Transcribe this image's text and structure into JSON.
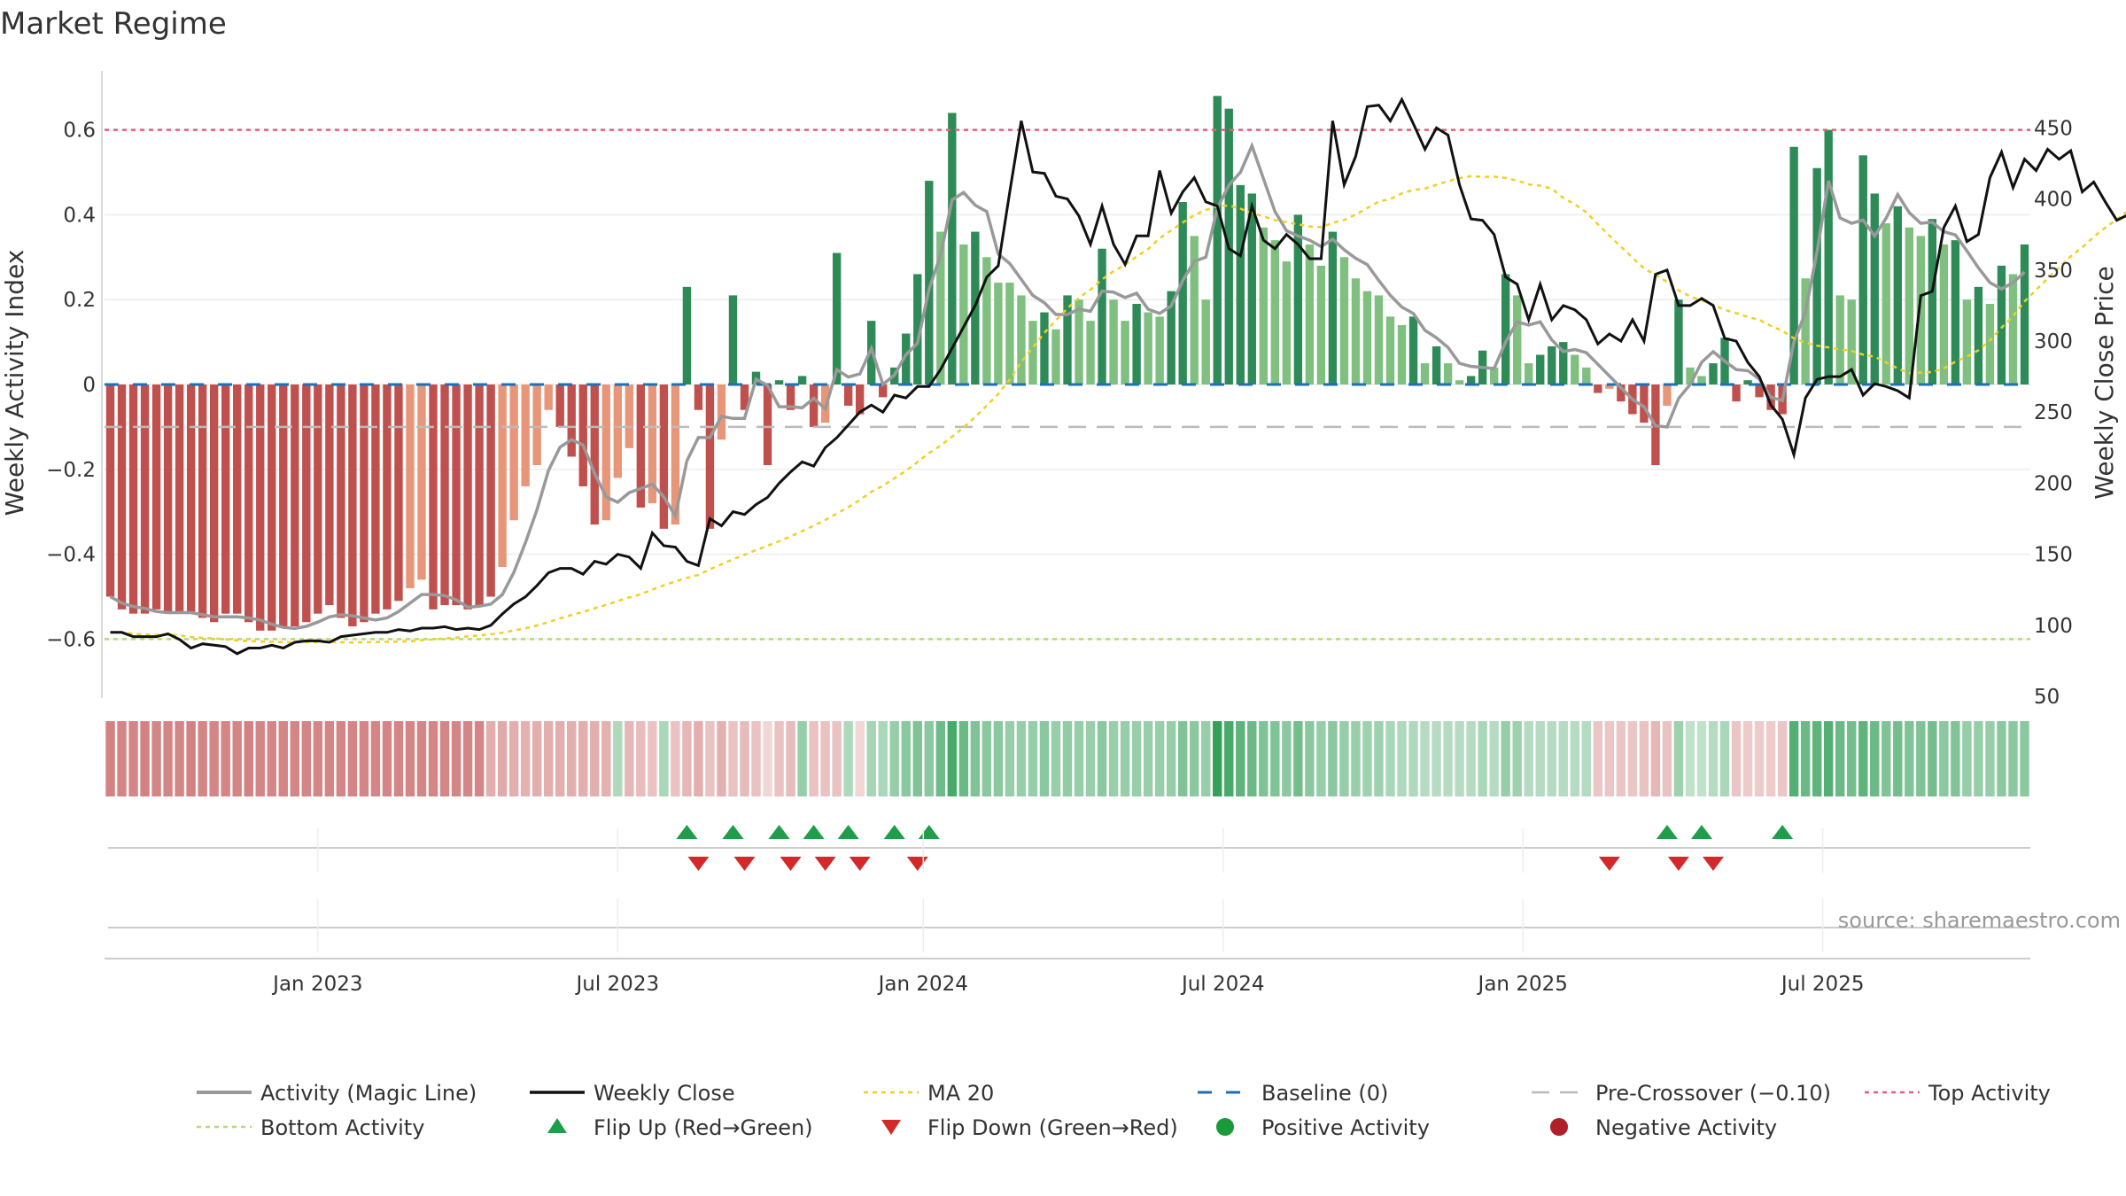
{
  "chart_data": {
    "type": "bar",
    "title": "Market Regime",
    "source_text": "source: sharemaestro.com",
    "y_left": {
      "label": "Weekly Activity Index",
      "range": [
        -0.73,
        0.73
      ],
      "ticks": [
        "0.6",
        "0.4",
        "0.2",
        "0",
        "−0.2",
        "−0.4",
        "−0.6"
      ],
      "tick_values": [
        0.6,
        0.4,
        0.2,
        0,
        -0.2,
        -0.4,
        -0.6
      ]
    },
    "y_right": {
      "label": "Weekly Close Price",
      "range": [
        47,
        484
      ],
      "ticks": [
        "450",
        "400",
        "350",
        "300",
        "250",
        "200",
        "150",
        "100",
        "50"
      ],
      "tick_values": [
        450,
        400,
        350,
        300,
        250,
        200,
        150,
        100,
        50
      ]
    },
    "x_axis": {
      "ticks": [
        {
          "label": "Jan 2023",
          "week": 18
        },
        {
          "label": "Jul 2023",
          "week": 44
        },
        {
          "label": "Jan 2024",
          "week": 70.5
        },
        {
          "label": "Jul 2024",
          "week": 96.5
        },
        {
          "label": "Jan 2025",
          "week": 122.5
        },
        {
          "label": "Jul 2025",
          "week": 148.5
        }
      ]
    },
    "reference_lines": {
      "top_activity": 0.6,
      "bottom_activity": -0.6,
      "baseline": 0,
      "pre_crossover": -0.1
    },
    "activity": [
      -0.5,
      -0.53,
      -0.54,
      -0.54,
      -0.53,
      -0.54,
      -0.54,
      -0.54,
      -0.55,
      -0.56,
      -0.54,
      -0.54,
      -0.56,
      -0.58,
      -0.58,
      -0.57,
      -0.57,
      -0.56,
      -0.54,
      -0.52,
      -0.55,
      -0.57,
      -0.56,
      -0.54,
      -0.53,
      -0.51,
      -0.48,
      -0.46,
      -0.53,
      -0.52,
      -0.52,
      -0.53,
      -0.52,
      -0.5,
      -0.43,
      -0.32,
      -0.24,
      -0.19,
      -0.06,
      -0.1,
      -0.17,
      -0.24,
      -0.33,
      -0.32,
      -0.22,
      -0.15,
      -0.29,
      -0.28,
      -0.34,
      -0.33,
      0.23,
      -0.06,
      -0.34,
      -0.13,
      0.21,
      -0.06,
      0.03,
      -0.19,
      0.01,
      -0.06,
      0.02,
      -0.1,
      -0.09,
      0.31,
      -0.05,
      -0.07,
      0.15,
      -0.03,
      0.04,
      0.12,
      0.26,
      0.48,
      0.36,
      0.64,
      0.33,
      0.36,
      0.3,
      0.24,
      0.24,
      0.21,
      0.15,
      0.17,
      0.13,
      0.21,
      0.2,
      0.15,
      0.32,
      0.2,
      0.15,
      0.19,
      0.17,
      0.16,
      0.22,
      0.43,
      0.35,
      0.2,
      0.68,
      0.65,
      0.47,
      0.45,
      0.37,
      0.34,
      0.29,
      0.4,
      0.33,
      0.28,
      0.36,
      0.3,
      0.25,
      0.22,
      0.21,
      0.16,
      0.14,
      0.16,
      0.05,
      0.09,
      0.05,
      0.01,
      0.02,
      0.08,
      0.04,
      0.26,
      0.21,
      0.05,
      0.07,
      0.09,
      0.1,
      0.07,
      0.04,
      -0.02,
      -0.01,
      -0.04,
      -0.07,
      -0.09,
      -0.19,
      -0.05,
      0.2,
      0.04,
      0.02,
      0.05,
      0.11,
      -0.04,
      0.01,
      -0.03,
      -0.06,
      -0.07,
      0.56,
      0.25,
      0.51,
      0.6,
      0.21,
      0.2,
      0.54,
      0.45,
      0.38,
      0.42,
      0.37,
      0.35,
      0.39,
      0.33,
      0.34,
      0.2,
      0.23,
      0.19,
      0.28,
      0.26,
      0.33
    ],
    "weekly_close": [
      95,
      95,
      92,
      92,
      92,
      94,
      90,
      84,
      87,
      86,
      85,
      80,
      84,
      84,
      86,
      84,
      88,
      89,
      89,
      88,
      92,
      93,
      94,
      95,
      95,
      97,
      96,
      98,
      98,
      99,
      97,
      98,
      97,
      100,
      108,
      115,
      120,
      128,
      137,
      140,
      140,
      136,
      145,
      143,
      150,
      148,
      140,
      165,
      156,
      155,
      145,
      142,
      175,
      170,
      180,
      178,
      185,
      190,
      200,
      208,
      215,
      212,
      225,
      232,
      241,
      250,
      255,
      250,
      262,
      260,
      268,
      268,
      280,
      295,
      310,
      325,
      345,
      353,
      405,
      455,
      419,
      418,
      402,
      400,
      388,
      368,
      395,
      368,
      354,
      374,
      374,
      420,
      390,
      405,
      415,
      398,
      395,
      365,
      360,
      395,
      371,
      365,
      375,
      368,
      358,
      358,
      455,
      410,
      430,
      465,
      466,
      455,
      470,
      453,
      435,
      450,
      445,
      410,
      386,
      385,
      375,
      345,
      340,
      315,
      340,
      315,
      325,
      322,
      315,
      298,
      305,
      300,
      315,
      300,
      347,
      350,
      325,
      325,
      330,
      325,
      302,
      300,
      285,
      275,
      255,
      245,
      220,
      260,
      273,
      275,
      275,
      280,
      262,
      270,
      268,
      265,
      260,
      332,
      335,
      380,
      395,
      370,
      375,
      415,
      433,
      408,
      428,
      420,
      435,
      428,
      434,
      405,
      412,
      398,
      385,
      389,
      370,
      365,
      390,
      393
    ]
  },
  "color_band": {
    "values": [
      -0.62,
      -0.6,
      -0.6,
      -0.62,
      -0.6,
      -0.6,
      -0.6,
      -0.62,
      -0.6,
      -0.6,
      -0.6,
      -0.6,
      -0.62,
      -0.6,
      -0.6,
      -0.6,
      -0.6,
      -0.6,
      -0.6,
      -0.6,
      -0.6,
      -0.6,
      -0.6,
      -0.6,
      -0.6,
      -0.6,
      -0.6,
      -0.6,
      -0.6,
      -0.6,
      -0.6,
      -0.6,
      -0.6,
      -0.4,
      -0.42,
      -0.4,
      -0.38,
      -0.4,
      -0.4,
      -0.4,
      -0.4,
      -0.4,
      -0.4,
      -0.38,
      0.38,
      -0.35,
      -0.33,
      -0.3,
      0.4,
      -0.3,
      -0.35,
      -0.4,
      -0.3,
      -0.38,
      -0.3,
      -0.34,
      -0.3,
      -0.2,
      -0.3,
      -0.33,
      0.5,
      -0.3,
      -0.3,
      -0.3,
      0.38,
      -0.2,
      0.42,
      0.4,
      0.5,
      0.55,
      0.6,
      0.55,
      0.68,
      0.85,
      0.7,
      0.6,
      0.55,
      0.55,
      0.5,
      0.48,
      0.5,
      0.55,
      0.48,
      0.52,
      0.5,
      0.48,
      0.55,
      0.48,
      0.5,
      0.48,
      0.48,
      0.48,
      0.5,
      0.6,
      0.55,
      0.5,
      0.95,
      0.85,
      0.75,
      0.7,
      0.6,
      0.6,
      0.55,
      0.65,
      0.55,
      0.5,
      0.55,
      0.5,
      0.48,
      0.45,
      0.45,
      0.4,
      0.38,
      0.38,
      0.35,
      0.35,
      0.35,
      0.35,
      0.35,
      0.4,
      0.35,
      0.5,
      0.45,
      0.35,
      0.35,
      0.35,
      0.35,
      0.35,
      0.35,
      -0.28,
      -0.28,
      -0.28,
      -0.28,
      -0.3,
      -0.35,
      -0.3,
      0.45,
      0.3,
      0.3,
      0.35,
      0.4,
      -0.28,
      -0.25,
      -0.25,
      -0.25,
      -0.28,
      0.8,
      0.7,
      0.75,
      0.8,
      0.7,
      0.65,
      0.75,
      0.7,
      0.6,
      0.65,
      0.6,
      0.6,
      0.65,
      0.55,
      0.6,
      0.5,
      0.5,
      0.5,
      0.55,
      0.55,
      0.55
    ]
  },
  "markers": {
    "flip_up_weeks": [
      50,
      54,
      58,
      61,
      64,
      68,
      71,
      135,
      138,
      145
    ],
    "flip_down_weeks": [
      51,
      55,
      59,
      62,
      65,
      70,
      130,
      136,
      139
    ]
  },
  "legend": [
    {
      "key": "activity_line",
      "label": "Activity (Magic Line)"
    },
    {
      "key": "weekly_close",
      "label": "Weekly Close"
    },
    {
      "key": "ma20",
      "label": "MA 20"
    },
    {
      "key": "baseline",
      "label": "Baseline (0)"
    },
    {
      "key": "pre_crossover",
      "label": "Pre-Crossover (−0.10)"
    },
    {
      "key": "top_activity",
      "label": "Top Activity"
    },
    {
      "key": "bottom_activity",
      "label": "Bottom Activity"
    },
    {
      "key": "flip_up",
      "label": "Flip Up (Red→Green)"
    },
    {
      "key": "flip_down",
      "label": "Flip Down (Green→Red)"
    },
    {
      "key": "positive",
      "label": "Positive Activity"
    },
    {
      "key": "negative",
      "label": "Negative Activity"
    }
  ],
  "colors": {
    "pos_strong": "#2e8b57",
    "pos_light": "#7fbf7f",
    "neg_strong": "#c0504d",
    "neg_light": "#e8967a",
    "activity_line": "#999999",
    "weekly_close": "#111111",
    "ma20": "#f0d020",
    "baseline": "#1f6fb5",
    "pre_crossover": "#bbbbbb",
    "top_activity": "#e0607e",
    "bottom_activity": "#b5dc6e",
    "flip_up": "#1e9e4a",
    "flip_down": "#d22a2a",
    "positive_dot": "#1a9a3a",
    "negative_dot": "#b02028"
  }
}
